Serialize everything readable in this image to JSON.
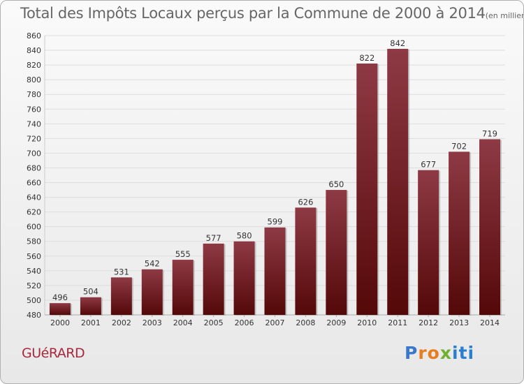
{
  "title": "Total des Impôts Locaux perçus par la Commune de 2000 à 2014",
  "title_unit": "(en milliers d'€)",
  "commune": "GUéRARD",
  "logo": {
    "text": "Proxiti",
    "letters": [
      "P",
      "r",
      "o",
      "x",
      "i",
      "t",
      "i"
    ],
    "colors": [
      "#3a78c9",
      "#e87d1e",
      "#e87d1e",
      "#6fb02e",
      "#2a7fd0",
      "#2a7fd0",
      "#2a7fd0"
    ]
  },
  "colors": {
    "bar_top": "#8e3a45",
    "bar_bottom": "#540808",
    "bar_shadow": "#9a9a9a",
    "grid": "#dddddd",
    "axis_text": "#333333",
    "label_text": "#333333"
  },
  "chart_data": {
    "type": "bar",
    "title": "Total des Impôts Locaux perçus par la Commune de 2000 à 2014",
    "ylabel": "en milliers d'€",
    "xlabel": "",
    "categories": [
      "2000",
      "2001",
      "2002",
      "2003",
      "2004",
      "2005",
      "2006",
      "2007",
      "2008",
      "2009",
      "2010",
      "2011",
      "2012",
      "2013",
      "2014"
    ],
    "values": [
      496,
      504,
      531,
      542,
      555,
      577,
      580,
      599,
      626,
      650,
      822,
      842,
      677,
      702,
      719
    ],
    "ylim": [
      480,
      860
    ],
    "yticks": [
      480,
      500,
      520,
      540,
      560,
      580,
      600,
      620,
      640,
      660,
      680,
      700,
      720,
      740,
      760,
      780,
      800,
      820,
      840,
      860
    ],
    "grid": true,
    "legend": "none"
  }
}
